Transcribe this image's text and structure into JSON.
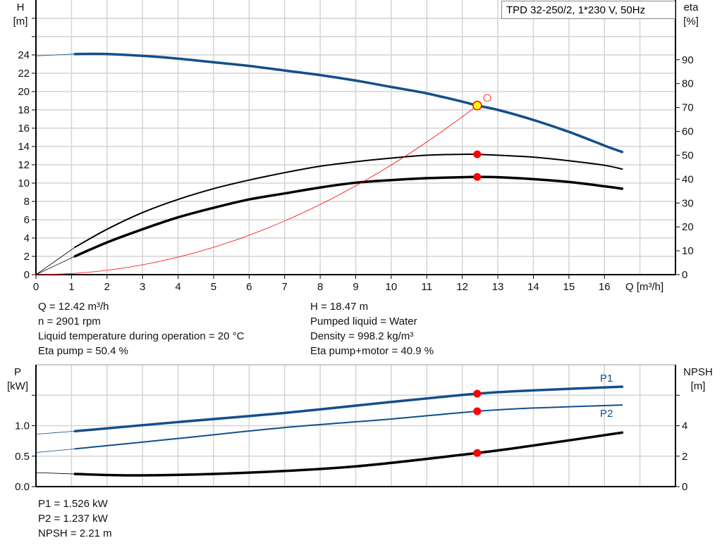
{
  "chart_data": [
    {
      "type": "line",
      "title": "TPD 32-250/2, 1*230 V, 50Hz",
      "xlabel": "Q [m³/h]",
      "ylabel_left": {
        "name": "H",
        "unit": "[m]"
      },
      "ylabel_right": {
        "name": "eta",
        "unit": "[%]"
      },
      "xlim": [
        0,
        18
      ],
      "ylim_left": [
        0,
        30
      ],
      "ylim_right": [
        0,
        115
      ],
      "x_ticks": [
        "0",
        "1",
        "2",
        "3",
        "4",
        "5",
        "6",
        "7",
        "8",
        "9",
        "10",
        "11",
        "12",
        "13",
        "14",
        "15",
        "16"
      ],
      "y_left_ticks": [
        "0",
        "2",
        "4",
        "6",
        "8",
        "10",
        "12",
        "14",
        "16",
        "18",
        "20",
        "22",
        "24"
      ],
      "y_right_ticks": [
        "0",
        "10",
        "20",
        "30",
        "40",
        "50",
        "60",
        "70",
        "80",
        "90"
      ],
      "grid": true,
      "series": [
        {
          "id": "head",
          "axis": "left",
          "color": "#134f8a",
          "x": [
            0,
            1.1,
            2,
            3,
            4,
            5,
            6,
            7,
            8,
            9,
            10,
            11,
            12,
            12.42,
            13,
            14,
            15,
            16,
            16.5
          ],
          "y": [
            23.9,
            24.1,
            24.1,
            23.9,
            23.6,
            23.2,
            22.8,
            22.3,
            21.8,
            21.2,
            20.5,
            19.8,
            18.9,
            18.47,
            18.0,
            16.9,
            15.6,
            14.1,
            13.4
          ]
        },
        {
          "id": "eta-pump",
          "axis": "right",
          "color": "#000000",
          "x": [
            0,
            1.1,
            2,
            3,
            4,
            5,
            6,
            7,
            8,
            9,
            10,
            11,
            12,
            12.42,
            13,
            14,
            15,
            16,
            16.5
          ],
          "y": [
            0,
            11.5,
            19,
            26,
            31.5,
            36,
            39.6,
            42.7,
            45.4,
            47.3,
            48.8,
            50,
            50.4,
            50.4,
            50,
            49.2,
            47.7,
            45.8,
            44.2
          ]
        },
        {
          "id": "eta-pump-motor",
          "axis": "right",
          "color": "#000000",
          "x": [
            0,
            1.1,
            2,
            3,
            4,
            5,
            6,
            7,
            8,
            9,
            10,
            11,
            12,
            12.42,
            13,
            14,
            15,
            16,
            16.5
          ],
          "y": [
            0,
            7.7,
            13.5,
            19,
            24,
            28,
            31.5,
            34,
            36.5,
            38.5,
            39.6,
            40.4,
            40.8,
            40.9,
            40.8,
            40,
            38.8,
            37,
            36
          ]
        },
        {
          "id": "system-curve",
          "axis": "left",
          "color": "#ff0000",
          "x": [
            0,
            1,
            2,
            3,
            4,
            5,
            6,
            7,
            8,
            9,
            10,
            11,
            12,
            12.42
          ],
          "y": [
            0,
            0.12,
            0.48,
            1.08,
            1.92,
            2.99,
            4.31,
            5.87,
            7.66,
            9.7,
            11.97,
            14.49,
            17.24,
            18.47
          ]
        }
      ],
      "operating_point": {
        "Q": 12.42,
        "H": 18.47,
        "eta_pump": 50.4,
        "eta_pump_motor": 40.9
      },
      "requested_point": {
        "Q": 12.7,
        "H": 19.3
      }
    },
    {
      "type": "line",
      "ylabel_left": {
        "name": "P",
        "unit": "[kW]"
      },
      "ylabel_right": {
        "name": "NPSH",
        "unit": "[m]"
      },
      "xlim": [
        0,
        18
      ],
      "ylim_left": [
        0,
        2.0
      ],
      "ylim_right": [
        0,
        8
      ],
      "y_left_ticks": [
        "0.0",
        "0.5",
        "1.0"
      ],
      "y_right_ticks": [
        "0",
        "2",
        "4"
      ],
      "grid": true,
      "series": [
        {
          "id": "p1",
          "name": "P1",
          "axis": "left",
          "color": "#134f8a",
          "x": [
            0,
            1.1,
            4,
            7,
            10,
            12.42,
            14,
            16.5
          ],
          "y": [
            0.86,
            0.91,
            1.06,
            1.21,
            1.39,
            1.526,
            1.58,
            1.64
          ]
        },
        {
          "id": "p2",
          "name": "P2",
          "axis": "left",
          "color": "#134f8a",
          "x": [
            0,
            1.1,
            4,
            7,
            10,
            12.42,
            14,
            16.5
          ],
          "y": [
            0.56,
            0.62,
            0.79,
            0.97,
            1.11,
            1.237,
            1.29,
            1.34
          ]
        },
        {
          "id": "npsh",
          "axis": "right",
          "color": "#000000",
          "x": [
            0,
            1.1,
            3,
            6,
            9,
            12.42,
            14,
            16.5
          ],
          "y": [
            0.92,
            0.83,
            0.74,
            0.92,
            1.33,
            2.21,
            2.7,
            3.55
          ]
        }
      ],
      "operating_point": {
        "Q": 12.42,
        "P1": 1.526,
        "P2": 1.237,
        "NPSH": 2.21
      }
    }
  ],
  "info_top_left": [
    "Q = 12.42 m³/h",
    "n = 2901 rpm",
    "Liquid temperature during operation = 20 °C",
    "Eta pump = 50.4 %"
  ],
  "info_top_right": [
    "H = 18.47 m",
    "Pumped liquid = Water",
    "Density = 998.2 kg/m³",
    "Eta pump+motor = 40.9 %"
  ],
  "info_bottom": [
    "P1 = 1.526 kW",
    "P2 = 1.237 kW",
    "NPSH = 2.21 m"
  ]
}
